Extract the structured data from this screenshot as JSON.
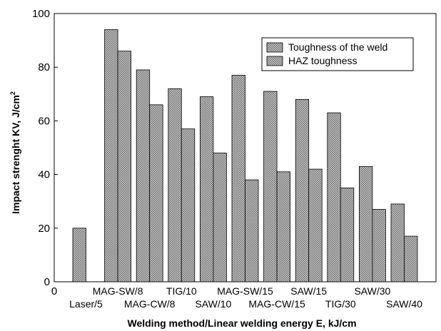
{
  "chart_data": {
    "type": "bar",
    "title": "",
    "xlabel": "Welding method/Linear welding energy  E, kJ/cm",
    "ylabel_main": "Impact strenght KV, J/cm",
    "ylabel_sup": "2",
    "ylim": [
      0,
      100
    ],
    "yticks": [
      0,
      20,
      40,
      60,
      80,
      100
    ],
    "x_origin_label": "0",
    "grid": false,
    "legend_position": "top-right",
    "categories": [
      "Laser/5",
      "MAG-SW/8",
      "MAG-CW/8",
      "TIG/10",
      "SAW/10",
      "MAG-SW/15",
      "MAG-CW/15",
      "SAW/15",
      "TIG/30",
      "SAW/30",
      "SAW/40"
    ],
    "series": [
      {
        "name": "Toughness of the weld",
        "values": [
          20,
          94,
          79,
          72,
          69,
          77,
          71,
          68,
          63,
          43,
          29
        ]
      },
      {
        "name": "HAZ toughness",
        "values": [
          0,
          86,
          66,
          57,
          48,
          38,
          41,
          42,
          35,
          27,
          17
        ]
      }
    ],
    "colors": {
      "bar_fill": "#a0a0a0",
      "bar_stroke": "#000000"
    }
  }
}
